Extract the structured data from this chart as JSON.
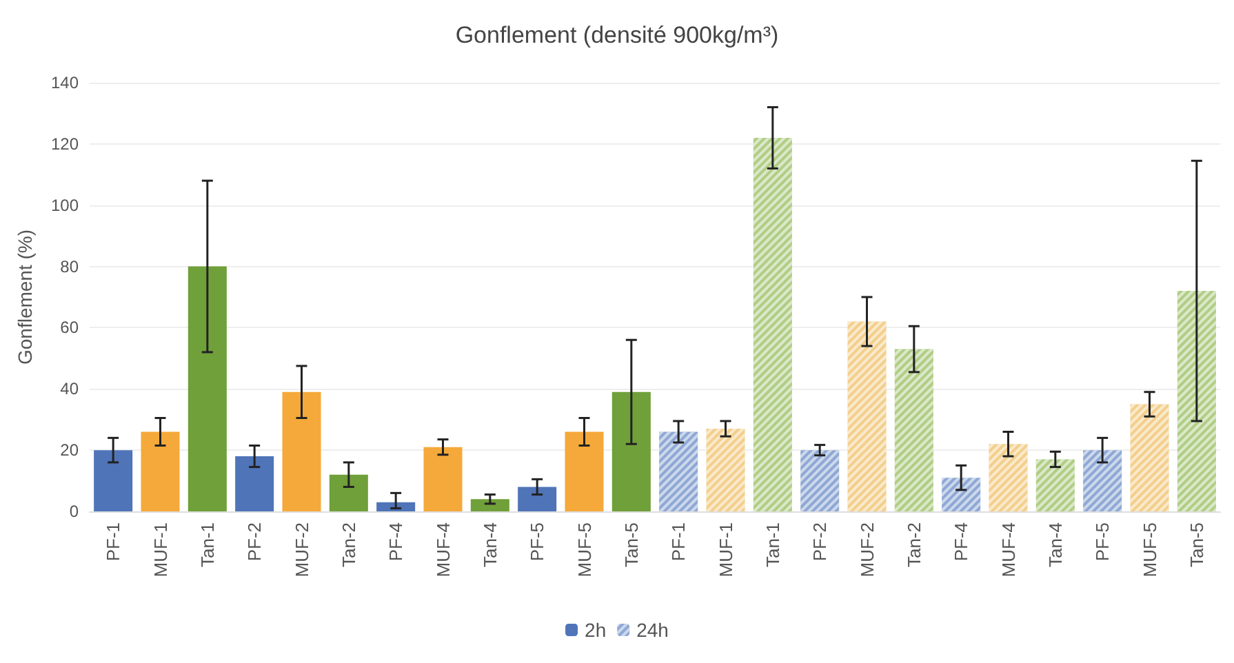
{
  "chart_data": {
    "type": "bar",
    "title": "Gonflement (densité 900kg/m³)",
    "ylabel": "Gonflement (%)",
    "categories": [
      "PF-1",
      "MUF-1",
      "Tan-1",
      "PF-2",
      "MUF-2",
      "Tan-2",
      "PF-4",
      "MUF-4",
      "Tan-4",
      "PF-5",
      "MUF-5",
      "Tan-5",
      "PF-1",
      "MUF-1",
      "Tan-1",
      "PF-2",
      "MUF-2",
      "Tan-2",
      "PF-4",
      "MUF-4",
      "Tan-4",
      "PF-5",
      "MUF-5",
      "Tan-5"
    ],
    "series": [
      {
        "name": "2h",
        "color": "#4f74b8",
        "colors": [
          "#4f74b8",
          "#f5a93a",
          "#70a03a",
          "#4f74b8",
          "#f5a93a",
          "#70a03a",
          "#4f74b8",
          "#f5a93a",
          "#70a03a",
          "#4f74b8",
          "#f5a93a",
          "#70a03a",
          null,
          null,
          null,
          null,
          null,
          null,
          null,
          null,
          null,
          null,
          null,
          null
        ],
        "values": [
          20,
          26,
          80,
          18,
          39,
          12,
          3,
          21,
          4,
          8,
          26,
          39,
          null,
          null,
          null,
          null,
          null,
          null,
          null,
          null,
          null,
          null,
          null,
          null
        ],
        "errors": [
          4,
          4.5,
          28,
          3.5,
          8.5,
          4,
          [
            1,
            6
          ],
          2.5,
          1.5,
          2.5,
          4.5,
          17,
          null,
          null,
          null,
          null,
          null,
          null,
          null,
          null,
          null,
          null,
          null,
          null
        ]
      },
      {
        "name": "24h",
        "color": "#8fa8d4",
        "colors": [
          null,
          null,
          null,
          null,
          null,
          null,
          null,
          null,
          null,
          null,
          null,
          null,
          "#8fa8d4",
          "#f3cf8c",
          "#b0cd85",
          "#8fa8d4",
          "#f3cf8c",
          "#b0cd85",
          "#8fa8d4",
          "#f3cf8c",
          "#b0cd85",
          "#8fa8d4",
          "#f3cf8c",
          "#b0cd85"
        ],
        "values": [
          null,
          null,
          null,
          null,
          null,
          null,
          null,
          null,
          null,
          null,
          null,
          null,
          26,
          27,
          122,
          20,
          62,
          53,
          11,
          22,
          17,
          20,
          35,
          72
        ],
        "errors": [
          null,
          null,
          null,
          null,
          null,
          null,
          null,
          null,
          null,
          null,
          null,
          null,
          3.5,
          2.5,
          10,
          1.7,
          8,
          7.5,
          4,
          4,
          2.5,
          4,
          4,
          42.5
        ]
      }
    ],
    "ylim": [
      0,
      140
    ],
    "yticks": [
      0,
      20,
      40,
      60,
      80,
      100,
      120,
      140
    ],
    "grid": true,
    "legend": "bottom"
  }
}
